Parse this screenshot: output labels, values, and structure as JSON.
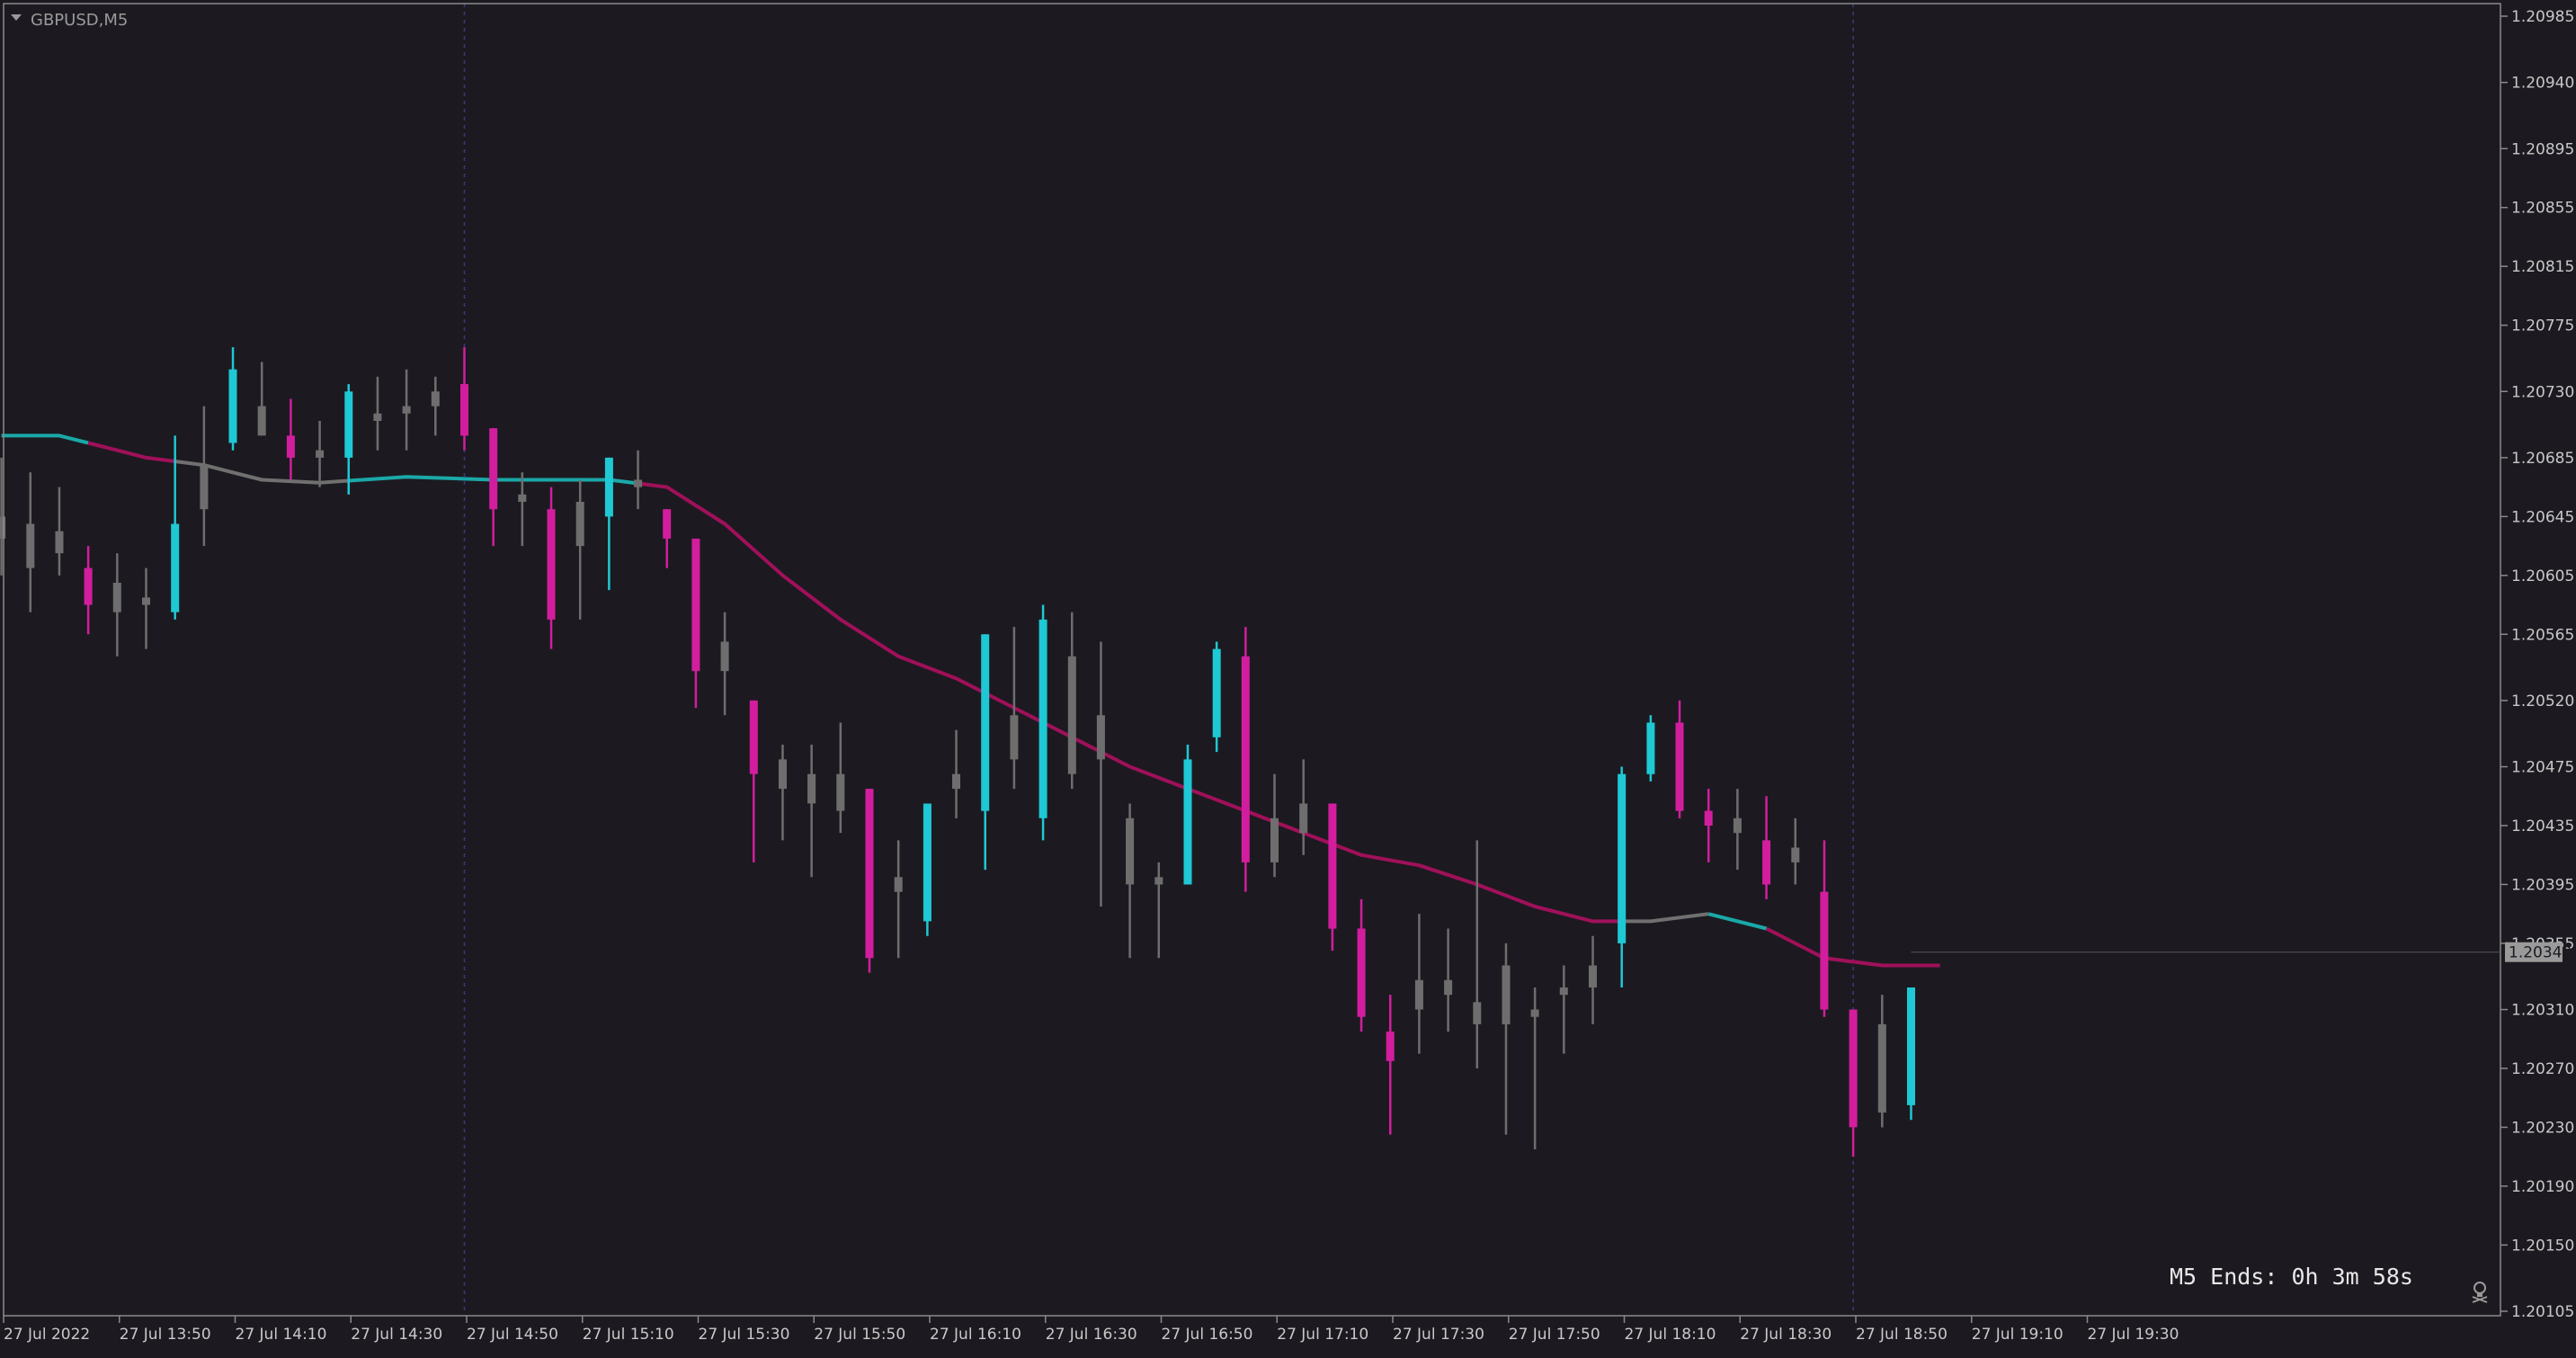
{
  "symbol_label": "GBPUSD,M5",
  "timer_label": "M5 Ends: 0h 3m 58s",
  "current_price_label": "1.20349",
  "colors": {
    "background": "#1c1a20",
    "bull": "#1ec8d4",
    "bear": "#d21e9e",
    "neutral": "#6e6e6e",
    "ma_bear": "#a0105a",
    "ma_bull": "#1aa8a8",
    "ma_neutral": "#707070",
    "frame": "#8a8a8a"
  },
  "chart_data": {
    "type": "candlestick",
    "timeframe": "M5",
    "ylim": [
      1.20105,
      1.20985
    ],
    "y_ticks": [
      "1.20985",
      "1.20940",
      "1.20895",
      "1.20855",
      "1.20815",
      "1.20775",
      "1.20730",
      "1.20685",
      "1.20645",
      "1.20605",
      "1.20565",
      "1.20520",
      "1.20475",
      "1.20435",
      "1.20395",
      "1.20355",
      "1.20310",
      "1.20270",
      "1.20230",
      "1.20190",
      "1.20150",
      "1.20105"
    ],
    "x_ticks": [
      "27 Jul 2022",
      "27 Jul 13:50",
      "27 Jul 14:10",
      "27 Jul 14:30",
      "27 Jul 14:50",
      "27 Jul 15:10",
      "27 Jul 15:30",
      "27 Jul 15:50",
      "27 Jul 16:10",
      "27 Jul 16:30",
      "27 Jul 16:50",
      "27 Jul 17:10",
      "27 Jul 17:30",
      "27 Jul 17:50",
      "27 Jul 18:10",
      "27 Jul 18:30",
      "27 Jul 18:50",
      "27 Jul 19:10",
      "27 Jul 19:30"
    ],
    "period_separators": [
      "27 Jul 14:55",
      "27 Jul 18:55"
    ],
    "candles": [
      {
        "t": "13:35",
        "o": 1.20645,
        "h": 1.20685,
        "l": 1.20605,
        "c": 1.2063,
        "dir": "neutral"
      },
      {
        "t": "13:40",
        "o": 1.2064,
        "h": 1.20675,
        "l": 1.2058,
        "c": 1.2061,
        "dir": "neutral"
      },
      {
        "t": "13:45",
        "o": 1.2062,
        "h": 1.20665,
        "l": 1.20605,
        "c": 1.20635,
        "dir": "neutral"
      },
      {
        "t": "13:50",
        "o": 1.2061,
        "h": 1.20625,
        "l": 1.20565,
        "c": 1.20585,
        "dir": "bear"
      },
      {
        "t": "13:55",
        "o": 1.206,
        "h": 1.2062,
        "l": 1.2055,
        "c": 1.2058,
        "dir": "neutral"
      },
      {
        "t": "14:00",
        "o": 1.2059,
        "h": 1.2061,
        "l": 1.20555,
        "c": 1.20585,
        "dir": "neutral"
      },
      {
        "t": "14:05",
        "o": 1.2058,
        "h": 1.207,
        "l": 1.20575,
        "c": 1.2064,
        "dir": "bull"
      },
      {
        "t": "14:10",
        "o": 1.2065,
        "h": 1.2072,
        "l": 1.20625,
        "c": 1.2068,
        "dir": "neutral"
      },
      {
        "t": "14:15",
        "o": 1.20695,
        "h": 1.2076,
        "l": 1.2069,
        "c": 1.20745,
        "dir": "bull"
      },
      {
        "t": "14:20",
        "o": 1.207,
        "h": 1.2075,
        "l": 1.207,
        "c": 1.2072,
        "dir": "neutral"
      },
      {
        "t": "14:25",
        "o": 1.207,
        "h": 1.20725,
        "l": 1.2067,
        "c": 1.20685,
        "dir": "bear"
      },
      {
        "t": "14:30",
        "o": 1.20685,
        "h": 1.2071,
        "l": 1.20665,
        "c": 1.2069,
        "dir": "neutral"
      },
      {
        "t": "14:35",
        "o": 1.20685,
        "h": 1.20735,
        "l": 1.2066,
        "c": 1.2073,
        "dir": "bull"
      },
      {
        "t": "14:40",
        "o": 1.2071,
        "h": 1.2074,
        "l": 1.2069,
        "c": 1.20715,
        "dir": "neutral"
      },
      {
        "t": "14:45",
        "o": 1.20715,
        "h": 1.20745,
        "l": 1.2069,
        "c": 1.2072,
        "dir": "neutral"
      },
      {
        "t": "14:50",
        "o": 1.2072,
        "h": 1.2074,
        "l": 1.207,
        "c": 1.2073,
        "dir": "neutral"
      },
      {
        "t": "14:55",
        "o": 1.20735,
        "h": 1.2076,
        "l": 1.2069,
        "c": 1.207,
        "dir": "bear"
      },
      {
        "t": "15:00",
        "o": 1.20705,
        "h": 1.20705,
        "l": 1.20625,
        "c": 1.2065,
        "dir": "bear"
      },
      {
        "t": "15:05",
        "o": 1.2066,
        "h": 1.20675,
        "l": 1.20625,
        "c": 1.20655,
        "dir": "neutral"
      },
      {
        "t": "15:10",
        "o": 1.2065,
        "h": 1.20665,
        "l": 1.20555,
        "c": 1.20575,
        "dir": "bear"
      },
      {
        "t": "15:15",
        "o": 1.20655,
        "h": 1.2067,
        "l": 1.20575,
        "c": 1.20625,
        "dir": "neutral"
      },
      {
        "t": "15:20",
        "o": 1.20645,
        "h": 1.20685,
        "l": 1.20595,
        "c": 1.20685,
        "dir": "bull"
      },
      {
        "t": "15:25",
        "o": 1.2067,
        "h": 1.2069,
        "l": 1.2065,
        "c": 1.20665,
        "dir": "neutral"
      },
      {
        "t": "15:30",
        "o": 1.2065,
        "h": 1.2065,
        "l": 1.2061,
        "c": 1.2063,
        "dir": "bear"
      },
      {
        "t": "15:35",
        "o": 1.2063,
        "h": 1.2063,
        "l": 1.20515,
        "c": 1.2054,
        "dir": "bear"
      },
      {
        "t": "15:40",
        "o": 1.2056,
        "h": 1.2058,
        "l": 1.2051,
        "c": 1.2054,
        "dir": "neutral"
      },
      {
        "t": "15:45",
        "o": 1.2052,
        "h": 1.2052,
        "l": 1.2041,
        "c": 1.2047,
        "dir": "bear"
      },
      {
        "t": "15:50",
        "o": 1.2048,
        "h": 1.2049,
        "l": 1.20425,
        "c": 1.2046,
        "dir": "neutral"
      },
      {
        "t": "15:55",
        "o": 1.2045,
        "h": 1.2049,
        "l": 1.204,
        "c": 1.2047,
        "dir": "neutral"
      },
      {
        "t": "16:00",
        "o": 1.20445,
        "h": 1.20505,
        "l": 1.2043,
        "c": 1.2047,
        "dir": "neutral"
      },
      {
        "t": "16:05",
        "o": 1.2046,
        "h": 1.2046,
        "l": 1.20335,
        "c": 1.20345,
        "dir": "bear"
      },
      {
        "t": "16:10",
        "o": 1.2039,
        "h": 1.20425,
        "l": 1.20345,
        "c": 1.204,
        "dir": "neutral"
      },
      {
        "t": "16:15",
        "o": 1.2037,
        "h": 1.2045,
        "l": 1.2036,
        "c": 1.2045,
        "dir": "bull"
      },
      {
        "t": "16:20",
        "o": 1.2047,
        "h": 1.205,
        "l": 1.2044,
        "c": 1.2046,
        "dir": "neutral"
      },
      {
        "t": "16:25",
        "o": 1.20445,
        "h": 1.20565,
        "l": 1.20405,
        "c": 1.20565,
        "dir": "bull"
      },
      {
        "t": "16:30",
        "o": 1.2048,
        "h": 1.2057,
        "l": 1.2046,
        "c": 1.2051,
        "dir": "neutral"
      },
      {
        "t": "16:35",
        "o": 1.2044,
        "h": 1.20585,
        "l": 1.20425,
        "c": 1.20575,
        "dir": "bull"
      },
      {
        "t": "16:40",
        "o": 1.2047,
        "h": 1.2058,
        "l": 1.2046,
        "c": 1.2055,
        "dir": "neutral"
      },
      {
        "t": "16:45",
        "o": 1.2051,
        "h": 1.2056,
        "l": 1.2038,
        "c": 1.2048,
        "dir": "neutral"
      },
      {
        "t": "16:50",
        "o": 1.2044,
        "h": 1.2045,
        "l": 1.20345,
        "c": 1.20395,
        "dir": "neutral"
      },
      {
        "t": "16:55",
        "o": 1.204,
        "h": 1.2041,
        "l": 1.20345,
        "c": 1.20395,
        "dir": "neutral"
      },
      {
        "t": "17:00",
        "o": 1.20395,
        "h": 1.2049,
        "l": 1.20395,
        "c": 1.2048,
        "dir": "bull"
      },
      {
        "t": "17:05",
        "o": 1.20495,
        "h": 1.2056,
        "l": 1.20485,
        "c": 1.20555,
        "dir": "bull"
      },
      {
        "t": "17:10",
        "o": 1.2055,
        "h": 1.2057,
        "l": 1.2039,
        "c": 1.2041,
        "dir": "bear"
      },
      {
        "t": "17:15",
        "o": 1.2044,
        "h": 1.2047,
        "l": 1.204,
        "c": 1.2041,
        "dir": "neutral"
      },
      {
        "t": "17:20",
        "o": 1.2045,
        "h": 1.2048,
        "l": 1.20415,
        "c": 1.2043,
        "dir": "neutral"
      },
      {
        "t": "17:25",
        "o": 1.2045,
        "h": 1.2045,
        "l": 1.2035,
        "c": 1.20365,
        "dir": "bear"
      },
      {
        "t": "17:30",
        "o": 1.20365,
        "h": 1.20385,
        "l": 1.20295,
        "c": 1.20305,
        "dir": "bear"
      },
      {
        "t": "17:35",
        "o": 1.20295,
        "h": 1.2032,
        "l": 1.20225,
        "c": 1.20275,
        "dir": "bear"
      },
      {
        "t": "17:40",
        "o": 1.2031,
        "h": 1.20375,
        "l": 1.2028,
        "c": 1.2033,
        "dir": "neutral"
      },
      {
        "t": "17:45",
        "o": 1.2033,
        "h": 1.20365,
        "l": 1.20295,
        "c": 1.2032,
        "dir": "neutral"
      },
      {
        "t": "17:50",
        "o": 1.20315,
        "h": 1.20425,
        "l": 1.2027,
        "c": 1.203,
        "dir": "neutral"
      },
      {
        "t": "17:55",
        "o": 1.2034,
        "h": 1.20355,
        "l": 1.20225,
        "c": 1.203,
        "dir": "neutral"
      },
      {
        "t": "18:00",
        "o": 1.20305,
        "h": 1.20325,
        "l": 1.20215,
        "c": 1.2031,
        "dir": "neutral"
      },
      {
        "t": "18:05",
        "o": 1.2032,
        "h": 1.2034,
        "l": 1.2028,
        "c": 1.20325,
        "dir": "neutral"
      },
      {
        "t": "18:10",
        "o": 1.20325,
        "h": 1.2036,
        "l": 1.203,
        "c": 1.2034,
        "dir": "neutral"
      },
      {
        "t": "18:15",
        "o": 1.20355,
        "h": 1.20475,
        "l": 1.20325,
        "c": 1.2047,
        "dir": "bull"
      },
      {
        "t": "18:20",
        "o": 1.2047,
        "h": 1.2051,
        "l": 1.20465,
        "c": 1.20505,
        "dir": "bull"
      },
      {
        "t": "18:25",
        "o": 1.20505,
        "h": 1.2052,
        "l": 1.2044,
        "c": 1.20445,
        "dir": "bear"
      },
      {
        "t": "18:30",
        "o": 1.20445,
        "h": 1.2046,
        "l": 1.2041,
        "c": 1.20435,
        "dir": "bear"
      },
      {
        "t": "18:35",
        "o": 1.2044,
        "h": 1.2046,
        "l": 1.20405,
        "c": 1.2043,
        "dir": "neutral"
      },
      {
        "t": "18:40",
        "o": 1.20425,
        "h": 1.20455,
        "l": 1.20385,
        "c": 1.20395,
        "dir": "bear"
      },
      {
        "t": "18:45",
        "o": 1.2042,
        "h": 1.2044,
        "l": 1.20395,
        "c": 1.2041,
        "dir": "neutral"
      },
      {
        "t": "18:50",
        "o": 1.2039,
        "h": 1.20425,
        "l": 1.20305,
        "c": 1.2031,
        "dir": "bear"
      },
      {
        "t": "18:55",
        "o": 1.2031,
        "h": 1.2031,
        "l": 1.2021,
        "c": 1.2023,
        "dir": "bear"
      },
      {
        "t": "19:00",
        "o": 1.2024,
        "h": 1.2032,
        "l": 1.2023,
        "c": 1.203,
        "dir": "neutral"
      },
      {
        "t": "19:05",
        "o": 1.20245,
        "h": 1.20325,
        "l": 1.20235,
        "c": 1.20325,
        "dir": "bull"
      }
    ],
    "moving_average": [
      {
        "t": "13:35",
        "v": 1.207
      },
      {
        "t": "13:45",
        "v": 1.207
      },
      {
        "t": "14:00",
        "v": 1.20685
      },
      {
        "t": "14:10",
        "v": 1.2068
      },
      {
        "t": "14:20",
        "v": 1.2067
      },
      {
        "t": "14:30",
        "v": 1.20668
      },
      {
        "t": "14:45",
        "v": 1.20672
      },
      {
        "t": "15:00",
        "v": 1.2067
      },
      {
        "t": "15:10",
        "v": 1.2067
      },
      {
        "t": "15:20",
        "v": 1.2067
      },
      {
        "t": "15:30",
        "v": 1.20665
      },
      {
        "t": "15:40",
        "v": 1.2064
      },
      {
        "t": "15:50",
        "v": 1.20605
      },
      {
        "t": "16:00",
        "v": 1.20575
      },
      {
        "t": "16:10",
        "v": 1.2055
      },
      {
        "t": "16:20",
        "v": 1.20535
      },
      {
        "t": "16:30",
        "v": 1.20515
      },
      {
        "t": "16:40",
        "v": 1.20495
      },
      {
        "t": "16:50",
        "v": 1.20475
      },
      {
        "t": "17:00",
        "v": 1.2046
      },
      {
        "t": "17:10",
        "v": 1.20445
      },
      {
        "t": "17:20",
        "v": 1.2043
      },
      {
        "t": "17:30",
        "v": 1.20415
      },
      {
        "t": "17:40",
        "v": 1.20408
      },
      {
        "t": "17:50",
        "v": 1.20395
      },
      {
        "t": "18:00",
        "v": 1.2038
      },
      {
        "t": "18:10",
        "v": 1.2037
      },
      {
        "t": "18:20",
        "v": 1.2037
      },
      {
        "t": "18:30",
        "v": 1.20375
      },
      {
        "t": "18:40",
        "v": 1.20365
      },
      {
        "t": "18:50",
        "v": 1.20345
      },
      {
        "t": "19:00",
        "v": 1.2034
      },
      {
        "t": "19:10",
        "v": 1.2034
      }
    ],
    "ma_color_segments": [
      {
        "from": "13:35",
        "to": "13:50",
        "dir": "bull"
      },
      {
        "from": "13:50",
        "to": "14:05",
        "dir": "bear"
      },
      {
        "from": "14:05",
        "to": "14:35",
        "dir": "neutral"
      },
      {
        "from": "14:35",
        "to": "15:25",
        "dir": "bull"
      },
      {
        "from": "15:25",
        "to": "18:15",
        "dir": "bear"
      },
      {
        "from": "18:15",
        "to": "18:30",
        "dir": "neutral"
      },
      {
        "from": "18:30",
        "to": "18:40",
        "dir": "bull"
      },
      {
        "from": "18:40",
        "to": "19:10",
        "dir": "bear"
      }
    ],
    "current_price": 1.20349,
    "grid": false,
    "legend": "none"
  }
}
